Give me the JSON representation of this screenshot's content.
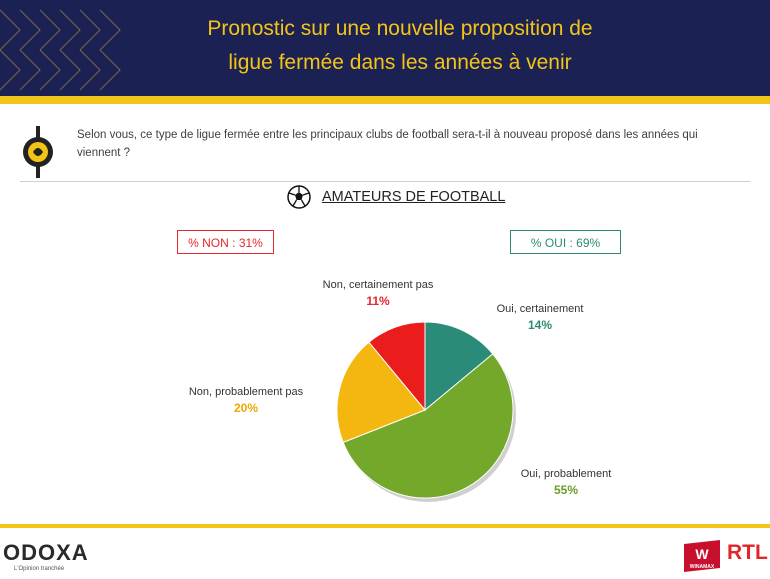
{
  "header": {
    "title_line1": "Pronostic sur une nouvelle proposition de",
    "title_line2": "ligue fermée dans les années à venir"
  },
  "question": {
    "text": "Selon vous, ce type de ligue fermée entre les principaux clubs de football sera-t-il à nouveau proposé dans les années qui viennent ?"
  },
  "subtitle": "AMATEURS DE FOOTBALL",
  "badges": {
    "non": "% NON : 31%",
    "oui": "% OUI : 69%"
  },
  "colors": {
    "navy": "#1c2154",
    "gold": "#f2c417",
    "red": "#e8262b",
    "teal": "#2d8a73",
    "green": "#74a82a",
    "yellow": "#f4b70f"
  },
  "chart_data": {
    "type": "pie",
    "start": "12 o'clock, clockwise",
    "slices": [
      {
        "label": "Oui, certainement",
        "value": 14,
        "value_label": "14%",
        "color": "#2a8b78",
        "label_color": "#2d8a73"
      },
      {
        "label": "Oui, probablement",
        "value": 55,
        "value_label": "55%",
        "color": "#74a82a",
        "label_color": "#6a9e28"
      },
      {
        "label": "Non, probablement pas",
        "value": 20,
        "value_label": "20%",
        "color": "#f4b70f",
        "label_color": "#f0a800"
      },
      {
        "label": "Non, certainement pas",
        "value": 11,
        "value_label": "11%",
        "color": "#ea1c1c",
        "label_color": "#e8262b"
      }
    ]
  },
  "footer": {
    "brand": "ODOXA",
    "tagline": "L'Opinion tranchée",
    "partner1": "WINAMAX",
    "partner2": "RTL"
  }
}
